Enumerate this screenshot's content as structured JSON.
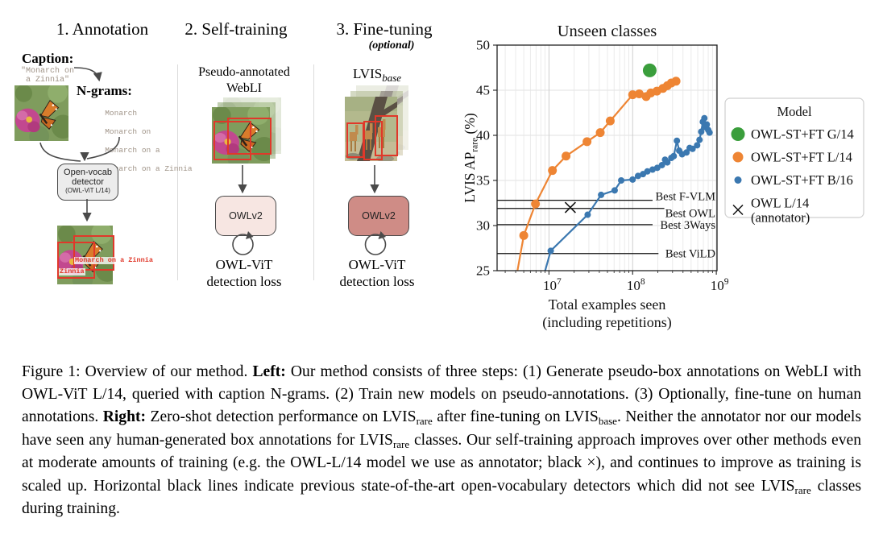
{
  "diagram": {
    "step1": {
      "title": "1. Annotation",
      "caption_label": "Caption:",
      "caption_line1": "\"Monarch on",
      "caption_line2": " a Zinnia\"",
      "ngrams_label": "N-grams:",
      "ngrams": [
        "Monarch",
        "Monarch on",
        "Monarch on a",
        "Monarch on a Zinnia",
        "..."
      ],
      "detector_line1": "Open-vocab",
      "detector_line2": "detector",
      "detector_sub": "(OWL-ViT L/14)",
      "box_label1": "Monarch on a Zinnia",
      "box_label2": "Zinnia"
    },
    "step2": {
      "title": "2. Self-training",
      "data_label_line1": "Pseudo-annotated",
      "data_label_line2": "WebLI",
      "model_label": "OWLv2",
      "model_color": "#f7e6e2",
      "loss_line1": "OWL-ViT",
      "loss_line2": "detection loss"
    },
    "step3": {
      "title": "3. Fine-tuning",
      "subtitle": "(optional)",
      "data_label_base": "LVIS",
      "data_label_sub": "base",
      "model_label": "OWLv2",
      "model_color": "#cf8c86",
      "loss_line1": "OWL-ViT",
      "loss_line2": "detection loss"
    }
  },
  "chart_data": {
    "type": "line",
    "title": "Unseen classes",
    "xlabel_line1": "Total examples seen",
    "xlabel_line2": "(including repetitions)",
    "ylabel_main": "LVIS AP",
    "ylabel_sub": "rare",
    "ylabel_suffix": " (%)",
    "x_scale": "log",
    "xlim": [
      2400000,
      1020000000
    ],
    "ylim": [
      25,
      50
    ],
    "x_ticks": [
      {
        "v": 10000000.0,
        "base": "10",
        "exp": "7"
      },
      {
        "v": 100000000.0,
        "base": "10",
        "exp": "8"
      },
      {
        "v": 1000000000.0,
        "base": "10",
        "exp": "9"
      }
    ],
    "y_ticks": [
      25,
      30,
      35,
      40,
      45,
      50
    ],
    "grid": true,
    "series": [
      {
        "name": "OWL-ST+FT G/14",
        "color": "#3a9e3c",
        "marker_radius": 8.5,
        "line": false,
        "x": [
          160000000.0
        ],
        "y": [
          47.2
        ]
      },
      {
        "name": "OWL-ST+FT L/14",
        "color": "#ee8534",
        "marker_radius": 5.5,
        "line": true,
        "line_width": 2.2,
        "lead": {
          "x": 3900000.0,
          "y": 23.3
        },
        "x": [
          5000000.0,
          6900000.0,
          11000000.0,
          16000000.0,
          28500000.0,
          41000000.0,
          54000000.0,
          100000000.0,
          120000000.0,
          145000000.0,
          165000000.0,
          195000000.0,
          230000000.0,
          260000000.0,
          290000000.0,
          330000000.0
        ],
        "y": [
          28.9,
          32.4,
          36.1,
          37.7,
          39.3,
          40.3,
          41.6,
          44.5,
          44.6,
          44.3,
          44.7,
          44.9,
          45.2,
          45.5,
          45.8,
          46.0
        ]
      },
      {
        "name": "OWL-ST+FT B/16",
        "color": "#3b78b0",
        "marker_radius": 4,
        "line": true,
        "line_width": 2.2,
        "lead": {
          "x": 8000000.0,
          "y": 23.3
        },
        "x": [
          10500000.0,
          29000000.0,
          42000000.0,
          61000000.0,
          73000000.0,
          100000000.0,
          116000000.0,
          133000000.0,
          150000000.0,
          173000000.0,
          197000000.0,
          224000000.0,
          244000000.0,
          260000000.0,
          290000000.0,
          310000000.0,
          338000000.0,
          360000000.0,
          390000000.0,
          440000000.0,
          480000000.0,
          520000000.0,
          590000000.0,
          630000000.0,
          660000000.0,
          690000000.0,
          720000000.0,
          740000000.0,
          770000000.0,
          800000000.0,
          830000000.0
        ],
        "y": [
          27.2,
          31.2,
          33.4,
          33.9,
          35.0,
          35.1,
          35.5,
          35.7,
          36.0,
          36.2,
          36.4,
          36.7,
          37.3,
          37.0,
          37.5,
          37.7,
          39.4,
          38.3,
          37.9,
          38.1,
          38.6,
          38.5,
          38.9,
          39.5,
          40.4,
          41.5,
          41.9,
          40.9,
          41.2,
          40.6,
          40.3
        ]
      }
    ],
    "annotator_point": {
      "x": 18000000.0,
      "y": 32.0,
      "marker": "x",
      "color": "#111111"
    },
    "reference_lines": [
      {
        "label": "Best F-VLM",
        "y": 32.8,
        "dy": 0
      },
      {
        "label": "Best OWL",
        "y": 31.9,
        "dy": 11
      },
      {
        "label": "Best 3Ways",
        "y": 30.1,
        "dy": 5
      },
      {
        "label": "Best ViLD",
        "y": 26.9,
        "dy": 5
      }
    ],
    "legend": {
      "title": "Model",
      "position": "right",
      "entries": [
        {
          "marker": "circle",
          "color": "#3a9e3c",
          "radius": 8.5,
          "lines": [
            "OWL-ST+FT G/14"
          ]
        },
        {
          "marker": "circle",
          "color": "#ee8534",
          "radius": 6.5,
          "lines": [
            "OWL-ST+FT L/14"
          ]
        },
        {
          "marker": "circle",
          "color": "#3b78b0",
          "radius": 4.5,
          "lines": [
            "OWL-ST+FT B/16"
          ]
        },
        {
          "marker": "x",
          "color": "#111111",
          "radius": 6,
          "lines": [
            "OWL L/14",
            "(annotator)"
          ]
        }
      ]
    }
  },
  "caption": {
    "parts": [
      {
        "text": "Figure 1: Overview of our method. "
      },
      {
        "text": "Left:"
      },
      {
        "text": " Our method consists of three steps: (1) Generate pseudo-box annotations on WebLI with OWL-ViT L/14, queried with caption N-grams. (2) Train new models on pseudo-annotations. (3) Optionally, fine-tune on human annotations. "
      },
      {
        "text": "Right:"
      },
      {
        "text": " Zero-shot detection performance on LVIS"
      },
      {
        "text": "rare"
      },
      {
        "text": " after fine-tuning on LVIS"
      },
      {
        "text": "base"
      },
      {
        "text": ". Neither the annotator nor our models have seen any human-generated box annotations for LVIS"
      },
      {
        "text": "rare"
      },
      {
        "text": " classes. Our self-training approach improves over other methods even at moderate amounts of training (e.g. the OWL-L/14 model we use as annotator; black ×), and continues to improve as training is scaled up. Horizontal black lines indicate previous state-of-the-art open-vocabulary detectors which did not see LVIS"
      },
      {
        "text": "rare"
      },
      {
        "text": " classes during training."
      }
    ]
  }
}
